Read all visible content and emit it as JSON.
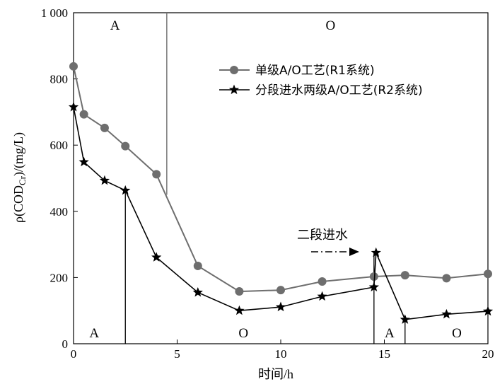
{
  "chart_data": {
    "type": "line",
    "xlabel": "时间/h",
    "ylabel": "ρ(COD",
    "ylabel_sub": "Cr",
    "ylabel_tail": ")/(mg/L)",
    "xlim": [
      0,
      20
    ],
    "ylim": [
      0,
      1000
    ],
    "xticks": [
      0,
      5,
      10,
      15,
      20
    ],
    "xtick_labels": [
      "0",
      "5",
      "10",
      "15",
      "20"
    ],
    "yticks": [
      0,
      200,
      400,
      600,
      800,
      1000
    ],
    "ytick_labels": [
      "0",
      "200",
      "400",
      "600",
      "800",
      "1 000"
    ],
    "grid": false,
    "legend_position": "upper-right",
    "series": [
      {
        "name": "单级A/O工艺(R1系统)",
        "marker": "circle",
        "color": "#6e6e6e",
        "x": [
          0,
          0.5,
          1.5,
          2.5,
          4,
          6,
          8,
          10,
          12,
          14.5,
          16,
          18,
          20
        ],
        "y": [
          838,
          693,
          652,
          597,
          512,
          235,
          158,
          162,
          188,
          203,
          207,
          198,
          211
        ]
      },
      {
        "name": "分段进水两级A/O工艺(R2系统)",
        "marker": "star",
        "color": "#000000",
        "x": [
          0,
          0.5,
          1.5,
          2.5,
          4,
          6,
          8,
          10,
          12,
          14.5,
          14.6,
          16,
          18,
          20
        ],
        "y": [
          715,
          549,
          493,
          463,
          261,
          155,
          100,
          111,
          143,
          171,
          275,
          73,
          89,
          98
        ]
      }
    ],
    "phase_labels_top": [
      "A",
      "O"
    ],
    "phase_labels_bottom": [
      "A",
      "O",
      "A",
      "O"
    ],
    "annotation": "二段进水"
  }
}
